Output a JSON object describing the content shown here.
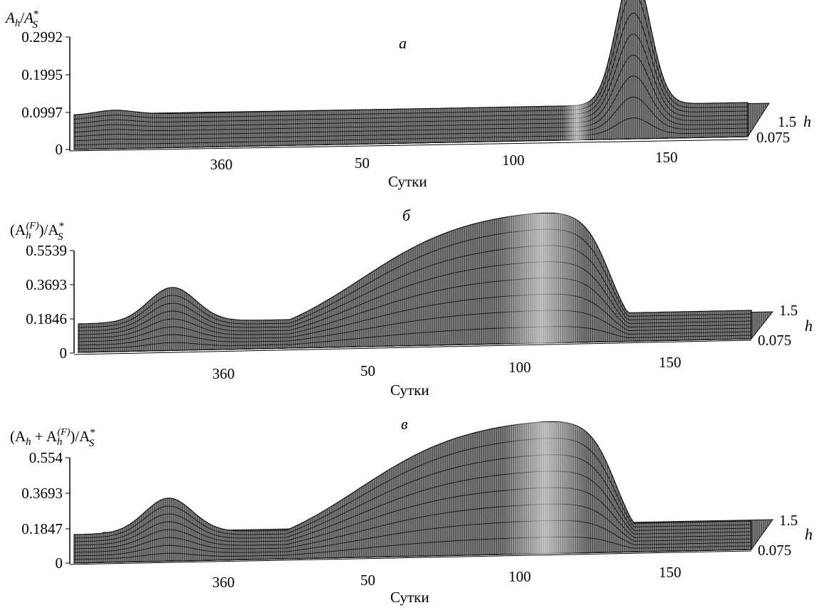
{
  "chart_data": [
    {
      "type": "surface",
      "panel": "a",
      "panel_letter": "а",
      "zlabel": {
        "base": "A",
        "sub": "h",
        "den": "A",
        "sup": "*",
        "dsub": "S"
      },
      "z_ticks": [
        "0",
        "0.0997",
        "0.1995",
        "0.2992"
      ],
      "zmax": 0.2992,
      "x_ticks": [
        "360",
        "50",
        "100",
        "150"
      ],
      "xlabel": "Сутки",
      "h_ticks": [
        "1.5",
        "0.075"
      ],
      "h_label": "h",
      "peak_day": 125,
      "peak_value": 0.2992
    },
    {
      "type": "surface",
      "panel": "b",
      "panel_letter": "б",
      "zlabel": {
        "text": "(A",
        "sub": "h",
        "sup2": "(F)",
        "tail": ")/A",
        "sup": "*",
        "dsub": "S"
      },
      "z_ticks": [
        "0",
        "0.1846",
        "0.3693",
        "0.5539"
      ],
      "zmax": 0.5539,
      "x_ticks": [
        "360",
        "50",
        "100",
        "150"
      ],
      "xlabel": "Сутки",
      "h_ticks": [
        "1.5",
        "0.075"
      ],
      "h_label": "h",
      "plateau_value": 0.5539
    },
    {
      "type": "surface",
      "panel": "c",
      "panel_letter": "в",
      "zlabel": {
        "text": "(A",
        "sub": "h",
        "mid": " + A",
        "sub2": "h",
        "sup2": "(F)",
        "tail": ")/A",
        "sup": "*",
        "dsub": "S"
      },
      "z_ticks": [
        "0",
        "0.1847",
        "0.3693",
        "0.554"
      ],
      "zmax": 0.554,
      "x_ticks": [
        "360",
        "50",
        "100",
        "150"
      ],
      "xlabel": "Сутки",
      "h_ticks": [
        "1.5",
        "0.075"
      ],
      "h_label": "h",
      "plateau_value": 0.554
    }
  ]
}
